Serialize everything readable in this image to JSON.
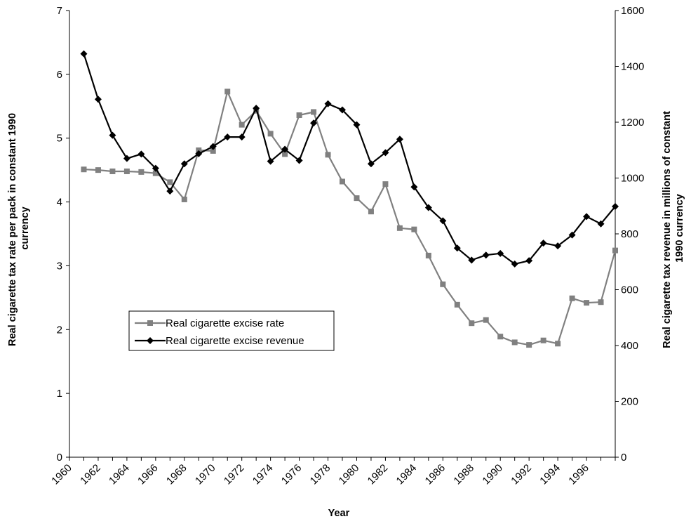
{
  "chart_data": {
    "type": "line",
    "title": "",
    "xlabel": "Year",
    "ylabel_left": "Real cigarette tax rate per pack in constant 1990 currency",
    "ylabel_left_lines": [
      "Real cigarette tax rate per pack in constant 1990",
      "currency"
    ],
    "ylabel_right": "Real cigarette tax revenue in millions of constant 1990 currency",
    "ylabel_right_lines": [
      "Real cigarette tax revenue in millions of constant",
      "1990 currency"
    ],
    "xlim": [
      1960,
      1998
    ],
    "ylim_left": [
      0,
      7
    ],
    "ylim_right": [
      0,
      1600
    ],
    "x_ticks": [
      "1960",
      "1962",
      "1964",
      "1966",
      "1968",
      "1970",
      "1972",
      "1974",
      "1976",
      "1978",
      "1980",
      "1982",
      "1984",
      "1986",
      "1988",
      "1990",
      "1992",
      "1994",
      "1996"
    ],
    "y_ticks_left": [
      "0",
      "1",
      "2",
      "3",
      "4",
      "5",
      "6",
      "7"
    ],
    "y_ticks_right": [
      "0",
      "200",
      "400",
      "600",
      "800",
      "1000",
      "1200",
      "1400",
      "1600"
    ],
    "grid": false,
    "legend_position": "center-left",
    "x": [
      1961,
      1962,
      1963,
      1964,
      1965,
      1966,
      1967,
      1968,
      1969,
      1970,
      1971,
      1972,
      1973,
      1974,
      1975,
      1976,
      1977,
      1978,
      1979,
      1980,
      1981,
      1982,
      1983,
      1984,
      1985,
      1986,
      1987,
      1988,
      1989,
      1990,
      1991,
      1992,
      1993,
      1994,
      1995,
      1996,
      1997,
      1998
    ],
    "series": [
      {
        "name": "Real cigarette excise rate",
        "axis": "left",
        "marker": "square",
        "color": "#808080",
        "values": [
          4.51,
          4.5,
          4.48,
          4.48,
          4.47,
          4.45,
          4.31,
          4.04,
          4.81,
          4.8,
          5.73,
          5.21,
          5.43,
          5.07,
          4.75,
          5.36,
          5.41,
          4.74,
          4.32,
          4.06,
          3.85,
          4.28,
          3.59,
          3.57,
          3.16,
          2.71,
          2.39,
          2.1,
          2.15,
          1.89,
          1.8,
          1.76,
          1.83,
          1.78,
          2.49,
          2.42,
          2.43,
          3.24
        ]
      },
      {
        "name": "Real cigarette excise revenue",
        "axis": "right",
        "marker": "diamond",
        "color": "#000000",
        "values": [
          1445,
          1282,
          1153,
          1070,
          1086,
          1035,
          953,
          1051,
          1087,
          1113,
          1147,
          1147,
          1250,
          1060,
          1103,
          1063,
          1197,
          1266,
          1244,
          1191,
          1051,
          1091,
          1139,
          968,
          894,
          847,
          749,
          706,
          724,
          730,
          692,
          704,
          767,
          757,
          796,
          862,
          836,
          898
        ]
      }
    ]
  }
}
